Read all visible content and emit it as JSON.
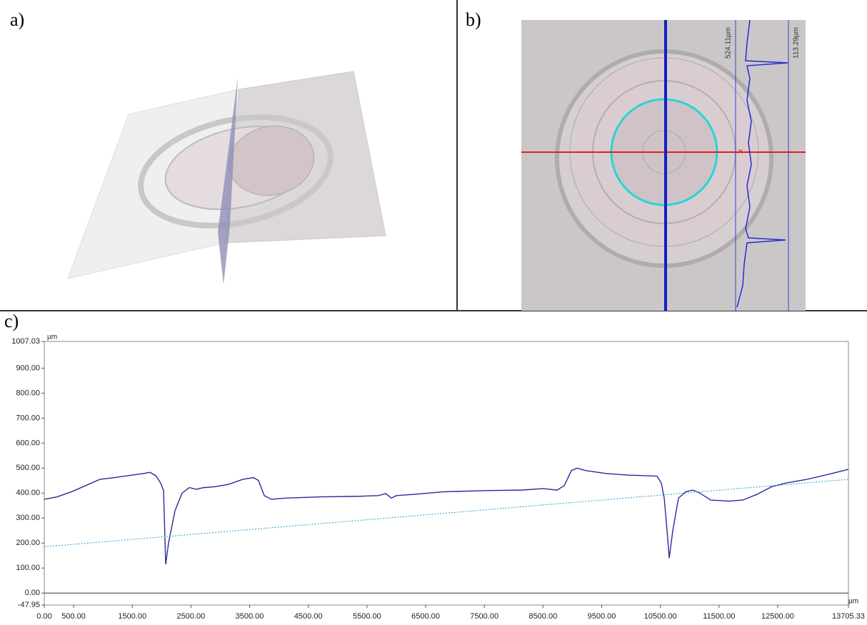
{
  "panels": {
    "a": {
      "label": "a)"
    },
    "b": {
      "label": "b)",
      "measure_left": "524.11µm",
      "measure_right": "113.29µm"
    },
    "c": {
      "label": "c)"
    }
  },
  "chart_data": {
    "type": "line",
    "y_unit": "µm",
    "x_unit": "µm",
    "xlim": [
      0,
      13705.33
    ],
    "ylim": [
      -47.95,
      1007.03
    ],
    "xticks": [
      {
        "value": 0,
        "label": "0.00"
      },
      {
        "value": 500,
        "label": "500.00"
      },
      {
        "value": 1500,
        "label": "1500.00"
      },
      {
        "value": 2500,
        "label": "2500.00"
      },
      {
        "value": 3500,
        "label": "3500.00"
      },
      {
        "value": 4500,
        "label": "4500.00"
      },
      {
        "value": 5500,
        "label": "5500.00"
      },
      {
        "value": 6500,
        "label": "6500.00"
      },
      {
        "value": 7500,
        "label": "7500.00"
      },
      {
        "value": 8500,
        "label": "8500.00"
      },
      {
        "value": 9500,
        "label": "9500.00"
      },
      {
        "value": 10500,
        "label": "10500.00"
      },
      {
        "value": 11500,
        "label": "11500.00"
      },
      {
        "value": 12500,
        "label": "12500.00"
      },
      {
        "value": 13705.33,
        "label": "13705.33"
      }
    ],
    "yticks": [
      {
        "value": -47.95,
        "label": "-47.95"
      },
      {
        "value": 0,
        "label": "0.00"
      },
      {
        "value": 100,
        "label": "100.00"
      },
      {
        "value": 200,
        "label": "200.00"
      },
      {
        "value": 300,
        "label": "300.00"
      },
      {
        "value": 400,
        "label": "400.00"
      },
      {
        "value": 500,
        "label": "500.00"
      },
      {
        "value": 600,
        "label": "600.00"
      },
      {
        "value": 700,
        "label": "700.00"
      },
      {
        "value": 800,
        "label": "800.00"
      },
      {
        "value": 900,
        "label": "900.00"
      },
      {
        "value": 1007.03,
        "label": "1007.03"
      }
    ],
    "series": [
      {
        "color": "#2a2a9a",
        "dashed": false,
        "x": [
          0,
          219,
          463,
          706,
          949,
          1193,
          1436,
          1680,
          1802,
          1899,
          1984,
          2033,
          2069,
          2118,
          2228,
          2349,
          2471,
          2593,
          2715,
          2897,
          3141,
          3384,
          3567,
          3652,
          3749,
          3871,
          4114,
          4723,
          5332,
          5697,
          5819,
          5916,
          6001,
          6305,
          6792,
          7523,
          8131,
          8497,
          8740,
          8862,
          8984,
          9081,
          9227,
          9592,
          9957,
          10444,
          10517,
          10566,
          10614,
          10651,
          10712,
          10809,
          10931,
          11052,
          11174,
          11357,
          11661,
          11905,
          12148,
          12392,
          12635,
          13000,
          13366,
          13705
        ],
        "values": [
          375,
          385,
          405,
          430,
          455,
          462,
          470,
          478,
          483,
          470,
          440,
          410,
          115,
          200,
          330,
          400,
          422,
          415,
          422,
          425,
          435,
          455,
          462,
          450,
          390,
          375,
          380,
          385,
          387,
          390,
          398,
          380,
          390,
          395,
          405,
          410,
          412,
          418,
          412,
          430,
          490,
          500,
          490,
          478,
          472,
          468,
          440,
          380,
          250,
          140,
          250,
          380,
          405,
          412,
          400,
          372,
          368,
          372,
          395,
          425,
          440,
          455,
          475,
          495
        ]
      },
      {
        "color": "#4aa8d8",
        "dashed": true,
        "x": [
          0,
          13705.33
        ],
        "values": [
          185,
          455
        ]
      }
    ]
  }
}
